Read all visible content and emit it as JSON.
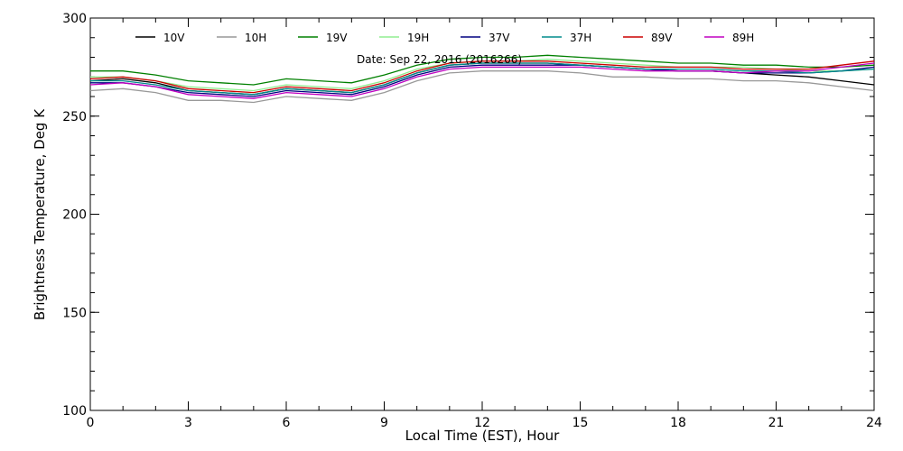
{
  "chart_data": {
    "type": "line",
    "title": "",
    "annotation": "Date: Sep 22, 2016 (2016266)",
    "xlabel": "Local Time (EST), Hour",
    "ylabel": "Brightness Temperature, Deg K",
    "xlim": [
      0,
      24
    ],
    "ylim": [
      100,
      300
    ],
    "x_ticks": [
      0,
      3,
      6,
      9,
      12,
      15,
      18,
      21,
      24
    ],
    "y_ticks": [
      100,
      150,
      200,
      250,
      300
    ],
    "x_minor_step": 1,
    "y_minor_step": 10,
    "grid": false,
    "legend_position": "top",
    "x": [
      0,
      1,
      2,
      3,
      4,
      5,
      6,
      7,
      8,
      9,
      10,
      11,
      12,
      13,
      14,
      15,
      16,
      17,
      18,
      19,
      20,
      21,
      22,
      23,
      24
    ],
    "series": [
      {
        "name": "10V",
        "color": "#000000",
        "values": [
          268,
          269,
          267,
          263,
          262,
          261,
          264,
          263,
          262,
          266,
          272,
          276,
          277,
          277,
          277,
          276,
          275,
          274,
          273,
          273,
          272,
          271,
          270,
          268,
          266
        ]
      },
      {
        "name": "10H",
        "color": "#999999",
        "values": [
          263,
          264,
          262,
          258,
          258,
          257,
          260,
          259,
          258,
          262,
          268,
          272,
          273,
          273,
          273,
          272,
          270,
          270,
          269,
          269,
          268,
          268,
          267,
          265,
          263
        ]
      },
      {
        "name": "19V",
        "color": "#008000",
        "values": [
          273,
          273,
          271,
          268,
          267,
          266,
          269,
          268,
          267,
          271,
          276,
          279,
          280,
          280,
          281,
          280,
          279,
          278,
          277,
          277,
          276,
          276,
          275,
          275,
          276
        ]
      },
      {
        "name": "19H",
        "color": "#90ee90",
        "values": [
          270,
          270,
          268,
          265,
          264,
          263,
          266,
          265,
          264,
          268,
          274,
          277,
          278,
          278,
          279,
          278,
          277,
          276,
          275,
          275,
          275,
          274,
          273,
          273,
          274
        ]
      },
      {
        "name": "37V",
        "color": "#000080",
        "values": [
          267,
          267,
          265,
          262,
          261,
          260,
          263,
          262,
          261,
          265,
          271,
          275,
          276,
          276,
          276,
          276,
          275,
          274,
          273,
          273,
          272,
          272,
          272,
          273,
          275
        ]
      },
      {
        "name": "37H",
        "color": "#008b8b",
        "values": [
          268,
          268,
          266,
          263,
          262,
          261,
          264,
          263,
          262,
          266,
          272,
          276,
          277,
          277,
          277,
          276,
          275,
          274,
          274,
          274,
          273,
          273,
          272,
          273,
          274
        ]
      },
      {
        "name": "89V",
        "color": "#cc0000",
        "values": [
          269,
          270,
          268,
          264,
          263,
          262,
          265,
          264,
          263,
          267,
          273,
          277,
          278,
          278,
          278,
          277,
          276,
          275,
          275,
          275,
          274,
          274,
          274,
          276,
          278
        ]
      },
      {
        "name": "89H",
        "color": "#c000c0",
        "values": [
          266,
          267,
          265,
          261,
          260,
          259,
          262,
          261,
          260,
          264,
          270,
          274,
          275,
          275,
          275,
          275,
          274,
          273,
          273,
          273,
          272,
          273,
          273,
          275,
          277
        ]
      }
    ]
  }
}
